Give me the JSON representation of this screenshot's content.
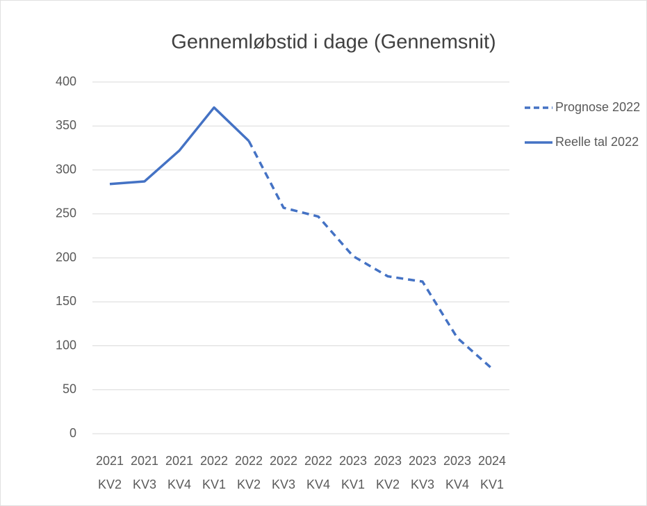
{
  "chart_data": {
    "type": "line",
    "title": "Gennemløbstid i dage (Gennemsnit)",
    "categories": [
      [
        "2021",
        "KV2"
      ],
      [
        "2021",
        "KV3"
      ],
      [
        "2021",
        "KV4"
      ],
      [
        "2022",
        "KV1"
      ],
      [
        "2022",
        "KV2"
      ],
      [
        "2022",
        "KV3"
      ],
      [
        "2022",
        "KV4"
      ],
      [
        "2023",
        "KV1"
      ],
      [
        "2023",
        "KV2"
      ],
      [
        "2023",
        "KV3"
      ],
      [
        "2023",
        "KV4"
      ],
      [
        "2024",
        "KV1"
      ]
    ],
    "series": [
      {
        "name": "Prognose 2022",
        "color": "#4472c4",
        "dashed": true,
        "values": [
          null,
          null,
          null,
          null,
          333,
          257,
          247,
          202,
          179,
          173,
          109,
          74
        ]
      },
      {
        "name": "Reelle tal 2022",
        "color": "#4472c4",
        "dashed": false,
        "values": [
          284,
          287,
          322,
          371,
          333,
          null,
          null,
          null,
          null,
          null,
          null,
          null
        ]
      }
    ],
    "ylim": [
      0,
      400
    ],
    "yticks": [
      0,
      50,
      100,
      150,
      200,
      250,
      300,
      350,
      400
    ],
    "grid": true,
    "legend": "right"
  }
}
